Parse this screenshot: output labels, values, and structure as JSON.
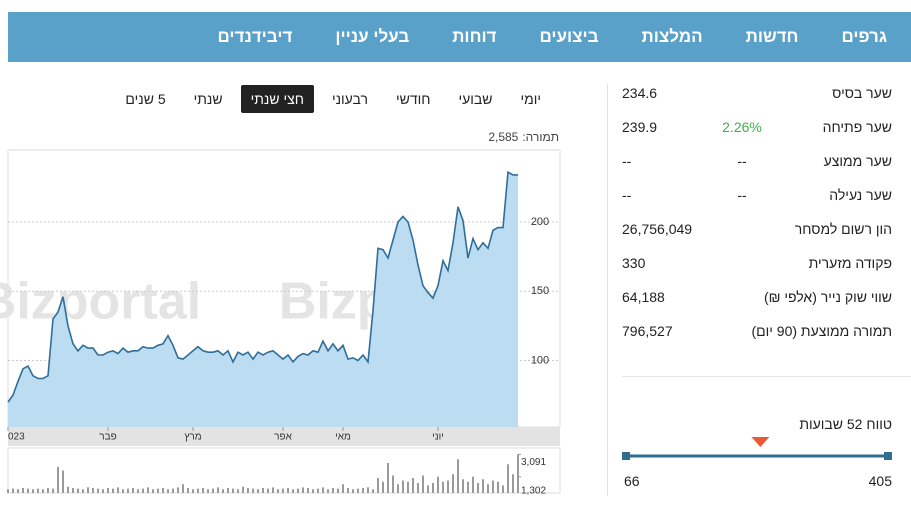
{
  "nav": [
    "גרפים",
    "חדשות",
    "המלצות",
    "ביצועים",
    "דוחות",
    "בעלי עניין",
    "דיבידנדים"
  ],
  "periods": [
    "יומי",
    "שבועי",
    "חודשי",
    "רבעוני",
    "חצי שנתי",
    "שנתי",
    "5 שנים"
  ],
  "selected_period_index": 4,
  "turnover": {
    "label": "תמורה:",
    "value": "2,585"
  },
  "chart_data": {
    "type": "area",
    "watermark": "Bizportal",
    "color": "#2f6e99",
    "fill": "#bcdcf2",
    "values": [
      70,
      75,
      85,
      94,
      96,
      89,
      87,
      87,
      89,
      130,
      135,
      146,
      125,
      112,
      107,
      111,
      109,
      109,
      104,
      104,
      106,
      107,
      105,
      109,
      106,
      107,
      107,
      110,
      109,
      109,
      111,
      112,
      118,
      111,
      102,
      101,
      104,
      107,
      110,
      107,
      106,
      106,
      107,
      104,
      107,
      99,
      106,
      104,
      106,
      101,
      106,
      104,
      106,
      107,
      104,
      101,
      104,
      99,
      103,
      105,
      104,
      107,
      106,
      114,
      107,
      112,
      107,
      111,
      101,
      102,
      100,
      104,
      99,
      136,
      181,
      180,
      174,
      187,
      200,
      204,
      200,
      187,
      169,
      154,
      149,
      145,
      154,
      172,
      165,
      185,
      211,
      201,
      174,
      188,
      180,
      185,
      181,
      194,
      196,
      196,
      236,
      234,
      234
    ],
    "xlim": [
      0,
      102
    ],
    "ylim": [
      52,
      252
    ],
    "yticks": [
      100,
      150,
      200
    ],
    "grid": true,
    "xticks": [
      {
        "value": 0,
        "label": "023"
      },
      {
        "value": 20,
        "label": "פבר"
      },
      {
        "value": 37,
        "label": "מרץ"
      },
      {
        "value": 55,
        "label": "אפר"
      },
      {
        "value": 67,
        "label": "מאי"
      },
      {
        "value": 86,
        "label": "יוני"
      }
    ],
    "volume": {
      "color": "#9a9a9a",
      "ylim": [
        0,
        3600
      ],
      "values": [
        300,
        350,
        300,
        400,
        350,
        300,
        350,
        300,
        400,
        350,
        2100,
        1800,
        500,
        400,
        350,
        300,
        450,
        400,
        350,
        300,
        400,
        350,
        450,
        300,
        350,
        400,
        300,
        350,
        450,
        300,
        350,
        400,
        300,
        350,
        450,
        700,
        400,
        300,
        350,
        400,
        300,
        350,
        450,
        300,
        400,
        350,
        300,
        500,
        400,
        350,
        300,
        400,
        350,
        450,
        300,
        350,
        400,
        300,
        350,
        450,
        400,
        300,
        350,
        450,
        300,
        400,
        350,
        700,
        400,
        300,
        350,
        400,
        450,
        300,
        1200,
        900,
        2400,
        1400,
        700,
        1000,
        900,
        1200,
        800,
        1400,
        600,
        800,
        1300,
        900,
        1000,
        1500,
        2700,
        1100,
        900,
        1300,
        800,
        1100,
        700,
        1000,
        900,
        600,
        2300,
        1500,
        3091
      ],
      "yticks": [
        {
          "value": 3091,
          "label": "3,091"
        },
        {
          "value": 1302,
          "label": "1,302"
        }
      ]
    }
  },
  "stats": {
    "rows": [
      {
        "label": "שער בסיס",
        "value": 234.6
      },
      {
        "label": "שער פתיחה",
        "value": 239.9,
        "change": "2.26%"
      },
      {
        "label": "שער ממוצע",
        "value": "--",
        "change": "--"
      },
      {
        "label": "שער נעילה",
        "value": "--",
        "change": "--"
      },
      {
        "label": "הון רשום למסחר",
        "value": "26,756,049"
      },
      {
        "label": "פקודה מזערית",
        "value": 330
      },
      {
        "label": "שווי שוק נייר (אלפי ₪)",
        "value": "64,188"
      },
      {
        "label": "תמורה ממוצעת (90 יום)",
        "value": "796,527"
      }
    ],
    "range": {
      "title": "טווח 52 שבועות",
      "low": 66,
      "high": 405
    }
  }
}
